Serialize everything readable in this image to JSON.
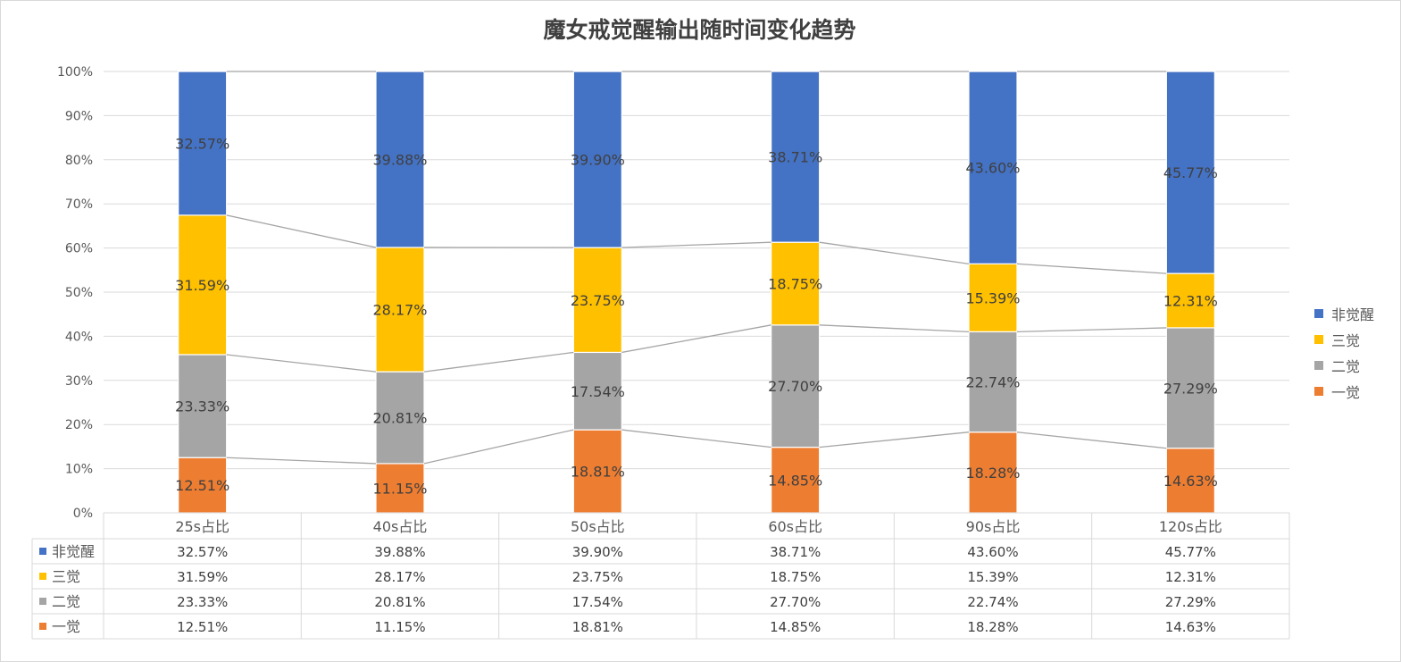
{
  "chart_data": {
    "type": "bar",
    "stacked": true,
    "title": "魔女戒觉醒输出随时间变化趋势",
    "categories": [
      "25s占比",
      "40s占比",
      "50s占比",
      "60s占比",
      "90s占比",
      "120s占比"
    ],
    "y_ticks": [
      "0%",
      "10%",
      "20%",
      "30%",
      "40%",
      "50%",
      "60%",
      "70%",
      "80%",
      "90%",
      "100%"
    ],
    "ylim": [
      0,
      100
    ],
    "grid": true,
    "series_lines": true,
    "legend_position": "right",
    "data_table": true,
    "series": [
      {
        "name": "一觉",
        "color": "#ed7d31",
        "values": [
          12.51,
          11.15,
          18.81,
          14.85,
          18.28,
          14.63
        ],
        "labels": [
          "12.51%",
          "11.15%",
          "18.81%",
          "14.85%",
          "18.28%",
          "14.63%"
        ]
      },
      {
        "name": "二觉",
        "color": "#a5a5a5",
        "values": [
          23.33,
          20.81,
          17.54,
          27.7,
          22.74,
          27.29
        ],
        "labels": [
          "23.33%",
          "20.81%",
          "17.54%",
          "27.70%",
          "22.74%",
          "27.29%"
        ]
      },
      {
        "name": "三觉",
        "color": "#ffc000",
        "values": [
          31.59,
          28.17,
          23.75,
          18.75,
          15.39,
          12.31
        ],
        "labels": [
          "31.59%",
          "28.17%",
          "23.75%",
          "18.75%",
          "15.39%",
          "12.31%"
        ]
      },
      {
        "name": "非觉醒",
        "color": "#4472c4",
        "values": [
          32.57,
          39.88,
          39.9,
          38.71,
          43.6,
          45.77
        ],
        "labels": [
          "32.57%",
          "39.88%",
          "39.90%",
          "38.71%",
          "43.60%",
          "45.77%"
        ]
      }
    ],
    "legend_order": [
      "非觉醒",
      "三觉",
      "二觉",
      "一觉"
    ],
    "table_row_order": [
      "非觉醒",
      "三觉",
      "二觉",
      "一觉"
    ]
  }
}
